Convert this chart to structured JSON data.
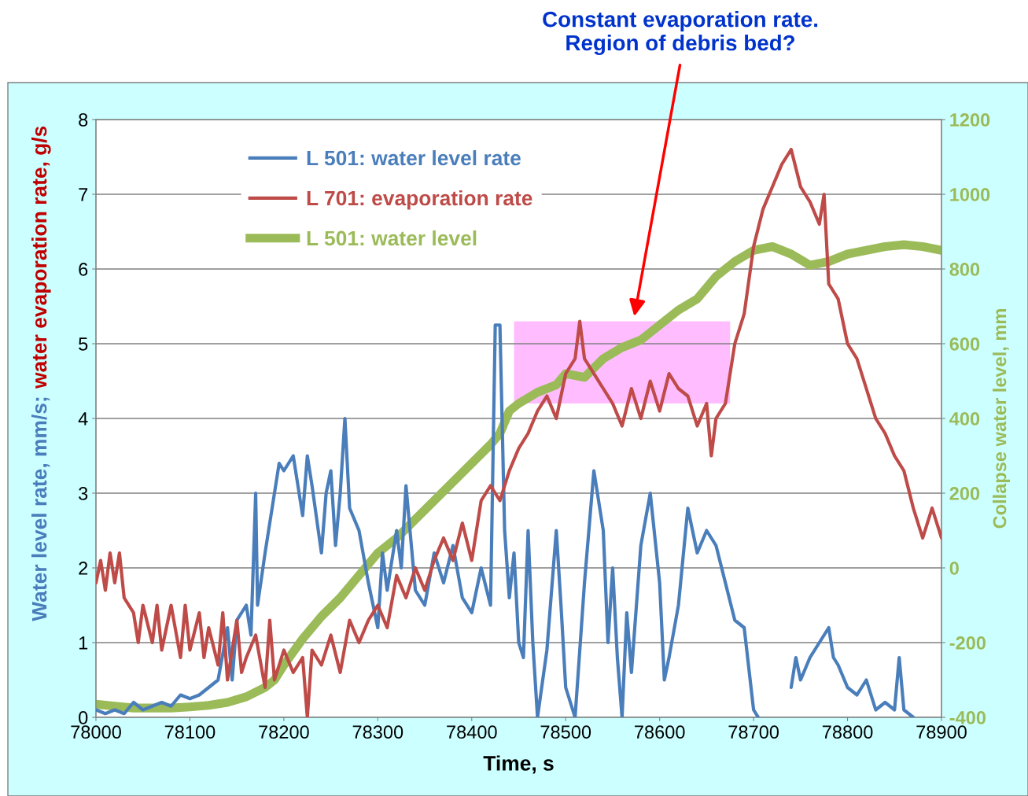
{
  "chart_data": {
    "type": "line",
    "xlabel": "Time, s",
    "ylabel": "Water level rate, mm/s; water evaporation rate, g/s",
    "y2label": "Collapse water level, mm",
    "annotations": [
      "Constant evaporation rate.\nRegion of debris bed?"
    ],
    "xlim": [
      78000,
      78900
    ],
    "xticks": [
      78000,
      78100,
      78200,
      78300,
      78400,
      78500,
      78600,
      78700,
      78800,
      78900
    ],
    "ylim": [
      0,
      8
    ],
    "yticks": [
      0,
      1,
      2,
      3,
      4,
      5,
      6,
      7,
      8
    ],
    "y2lim": [
      -400,
      1200
    ],
    "y2ticks": [
      -400,
      -200,
      0,
      200,
      400,
      600,
      800,
      1000,
      1200
    ],
    "grid": true,
    "legend": "top left",
    "marker": "none",
    "line_style": "solid",
    "bands": [
      {
        "axis": "x",
        "from": 78445,
        "to": 78675,
        "label": null,
        "color": "#ff99ff"
      }
    ],
    "series": [
      {
        "name": "L 501: water level rate",
        "color": "#4a7ebb",
        "x": [
          78000,
          78010,
          78020,
          78030,
          78040,
          78050,
          78060,
          78070,
          78080,
          78090,
          78100,
          78110,
          78120,
          78130,
          78140,
          78145,
          78150,
          78160,
          78165,
          78170,
          78172,
          78180,
          78190,
          78195,
          78200,
          78210,
          78220,
          78225,
          78230,
          78240,
          78245,
          78250,
          78255,
          78260,
          78265,
          78270,
          78280,
          78290,
          78300,
          78305,
          78310,
          78320,
          78325,
          78330,
          78340,
          78350,
          78360,
          78370,
          78380,
          78390,
          78400,
          78410,
          78420,
          78425,
          78430,
          78435,
          78440,
          78445,
          78450,
          78455,
          78460,
          78465,
          78470,
          78480,
          78490,
          78495,
          78500,
          78510,
          78520,
          78530,
          78540,
          78545,
          78550,
          78555,
          78560,
          78565,
          78570,
          78580,
          78590,
          78600,
          78605,
          78610,
          78620,
          78630,
          78640,
          78650,
          78660,
          78670,
          78680,
          78690,
          78700,
          78705,
          78720,
          78740,
          78745,
          78750,
          78760,
          78770,
          78780,
          78785,
          78790,
          78800,
          78810,
          78820,
          78825,
          78830,
          78840,
          78850,
          78855,
          78860,
          78870
        ],
        "values": [
          0.1,
          0.05,
          0.1,
          0.05,
          0.2,
          0.1,
          0.15,
          0.2,
          0.15,
          0.3,
          0.25,
          0.3,
          0.4,
          0.5,
          1.2,
          0.5,
          1.3,
          1.5,
          1.1,
          3.0,
          1.5,
          2.2,
          3.0,
          3.4,
          3.3,
          3.5,
          2.7,
          3.5,
          3.1,
          2.2,
          3.0,
          3.3,
          2.3,
          3.0,
          4.0,
          2.8,
          2.5,
          1.8,
          1.2,
          2.2,
          1.7,
          2.5,
          2.0,
          3.1,
          1.7,
          1.5,
          2.2,
          1.8,
          2.3,
          1.6,
          1.4,
          2.0,
          1.5,
          5.25,
          5.25,
          2.5,
          1.6,
          2.2,
          1.0,
          0.8,
          2.5,
          1.0,
          0.0,
          0.9,
          2.5,
          1.5,
          0.4,
          0.0,
          1.8,
          3.3,
          2.5,
          1.0,
          2.0,
          0.8,
          0.0,
          1.4,
          0.6,
          2.3,
          3.0,
          1.8,
          0.5,
          0.8,
          1.5,
          2.8,
          2.2,
          2.5,
          2.3,
          1.8,
          1.3,
          1.2,
          0.1,
          0.0,
          null,
          0.4,
          0.8,
          0.5,
          0.8,
          1.0,
          1.2,
          0.8,
          0.7,
          0.4,
          0.3,
          0.5,
          0.3,
          0.1,
          0.2,
          0.1,
          0.8,
          0.1,
          0.0
        ]
      },
      {
        "name": "L 701: evaporation rate",
        "color": "#be4b48",
        "x": [
          78000,
          78005,
          78010,
          78015,
          78020,
          78025,
          78030,
          78040,
          78045,
          78050,
          78060,
          78065,
          78070,
          78080,
          78090,
          78095,
          78100,
          78110,
          78115,
          78120,
          78130,
          78135,
          78140,
          78150,
          78155,
          78160,
          78170,
          78180,
          78185,
          78190,
          78200,
          78210,
          78220,
          78225,
          78230,
          78240,
          78250,
          78260,
          78270,
          78280,
          78290,
          78300,
          78310,
          78320,
          78330,
          78340,
          78350,
          78360,
          78370,
          78380,
          78390,
          78400,
          78410,
          78420,
          78430,
          78440,
          78450,
          78460,
          78470,
          78480,
          78490,
          78500,
          78510,
          78515,
          78520,
          78530,
          78540,
          78550,
          78560,
          78570,
          78580,
          78590,
          78600,
          78610,
          78620,
          78630,
          78640,
          78650,
          78655,
          78660,
          78670,
          78680,
          78690,
          78700,
          78710,
          78720,
          78730,
          78740,
          78750,
          78760,
          78770,
          78775,
          78780,
          78790,
          78800,
          78810,
          78820,
          78830,
          78840,
          78850,
          78860,
          78870,
          78880,
          78890,
          78900
        ],
        "values": [
          1.8,
          2.1,
          1.7,
          2.2,
          1.8,
          2.2,
          1.6,
          1.4,
          1.0,
          1.5,
          1.0,
          1.5,
          0.9,
          1.5,
          0.8,
          1.5,
          0.9,
          1.4,
          0.8,
          1.2,
          0.7,
          1.4,
          0.5,
          1.3,
          0.6,
          0.8,
          1.1,
          0.4,
          1.3,
          0.5,
          0.9,
          0.6,
          0.8,
          0.0,
          0.9,
          0.7,
          1.1,
          0.6,
          1.3,
          1.0,
          1.3,
          1.5,
          1.2,
          1.9,
          1.6,
          2.0,
          1.7,
          2.1,
          2.4,
          2.1,
          2.6,
          2.1,
          2.9,
          3.1,
          2.9,
          3.3,
          3.6,
          3.8,
          4.1,
          4.3,
          4.0,
          4.6,
          4.8,
          5.3,
          4.8,
          4.6,
          4.4,
          4.2,
          3.9,
          4.4,
          4.0,
          4.5,
          4.1,
          4.6,
          4.4,
          4.3,
          3.9,
          4.2,
          3.5,
          4.0,
          4.2,
          5.0,
          5.4,
          6.3,
          6.8,
          7.1,
          7.4,
          7.6,
          7.1,
          6.9,
          6.6,
          7.0,
          5.8,
          5.6,
          5.0,
          4.8,
          4.4,
          4.0,
          3.8,
          3.5,
          3.3,
          2.8,
          2.4,
          2.8,
          2.4
        ]
      },
      {
        "name": "L 501: water level",
        "color": "#9bbb59",
        "axis": "y2",
        "x": [
          78000,
          78020,
          78040,
          78060,
          78080,
          78100,
          78120,
          78140,
          78160,
          78180,
          78190,
          78200,
          78220,
          78240,
          78260,
          78280,
          78300,
          78320,
          78340,
          78360,
          78380,
          78400,
          78420,
          78430,
          78440,
          78450,
          78470,
          78490,
          78500,
          78520,
          78540,
          78560,
          78580,
          78600,
          78620,
          78640,
          78660,
          78680,
          78700,
          78720,
          78740,
          78760,
          78780,
          78800,
          78820,
          78840,
          78860,
          78880,
          78900
        ],
        "values": [
          -365,
          -370,
          -375,
          -375,
          -375,
          -372,
          -368,
          -360,
          -345,
          -320,
          -300,
          -260,
          -190,
          -130,
          -80,
          -20,
          40,
          80,
          130,
          180,
          230,
          280,
          330,
          360,
          420,
          440,
          470,
          490,
          520,
          510,
          560,
          590,
          610,
          650,
          690,
          720,
          780,
          820,
          850,
          860,
          840,
          810,
          820,
          840,
          850,
          860,
          865,
          860,
          850
        ]
      }
    ]
  }
}
